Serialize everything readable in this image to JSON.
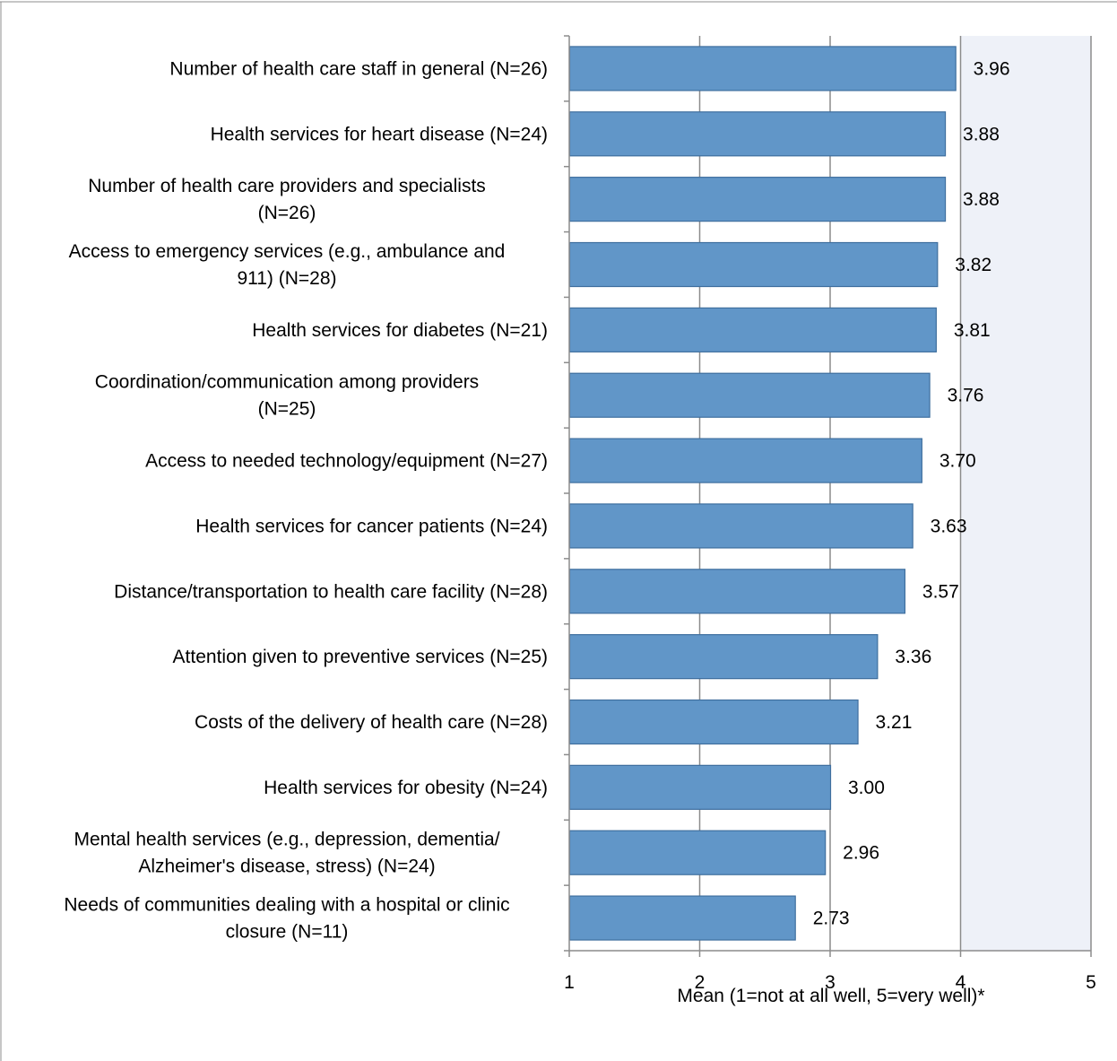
{
  "chart_data": {
    "type": "bar",
    "orientation": "horizontal",
    "categories": [
      [
        "Number of health care staff in general (N=26)"
      ],
      [
        "Health services for heart disease (N=24)"
      ],
      [
        "Number of health care providers and specialists",
        "(N=26)"
      ],
      [
        "Access to emergency services (e.g., ambulance and",
        "911) (N=28)"
      ],
      [
        "Health services for diabetes (N=21)"
      ],
      [
        "Coordination/communication among providers",
        "(N=25)"
      ],
      [
        "Access to needed technology/equipment (N=27)"
      ],
      [
        "Health services for cancer patients (N=24)"
      ],
      [
        "Distance/transportation to health care facility (N=28)"
      ],
      [
        "Attention given to preventive services (N=25)"
      ],
      [
        "Costs of the delivery of health care (N=28)"
      ],
      [
        "Health services for obesity (N=24)"
      ],
      [
        "Mental health services (e.g., depression, dementia/",
        "Alzheimer's disease, stress) (N=24)"
      ],
      [
        "Needs of communities dealing with a hospital or clinic",
        "closure (N=11)"
      ]
    ],
    "values": [
      3.96,
      3.88,
      3.88,
      3.82,
      3.81,
      3.76,
      3.7,
      3.63,
      3.57,
      3.36,
      3.21,
      3.0,
      2.96,
      2.73
    ],
    "value_labels": [
      "3.96",
      "3.88",
      "3.88",
      "3.82",
      "3.81",
      "3.76",
      "3.70",
      "3.63",
      "3.57",
      "3.36",
      "3.21",
      "3.00",
      "2.96",
      "2.73"
    ],
    "xlim": [
      1,
      5
    ],
    "xticks": [
      1,
      2,
      3,
      4,
      5
    ],
    "xlabel": "Mean (1=not at all well, 5=very well)*",
    "grid": true,
    "colors": {
      "bar_fill": "#6196c8",
      "bar_stroke": "#3f6f9e",
      "shaded_region": "#eef1f8",
      "gridline": "#8c8c8c",
      "axis": "#8c8c8c",
      "frame": "#8c8c8c"
    }
  }
}
